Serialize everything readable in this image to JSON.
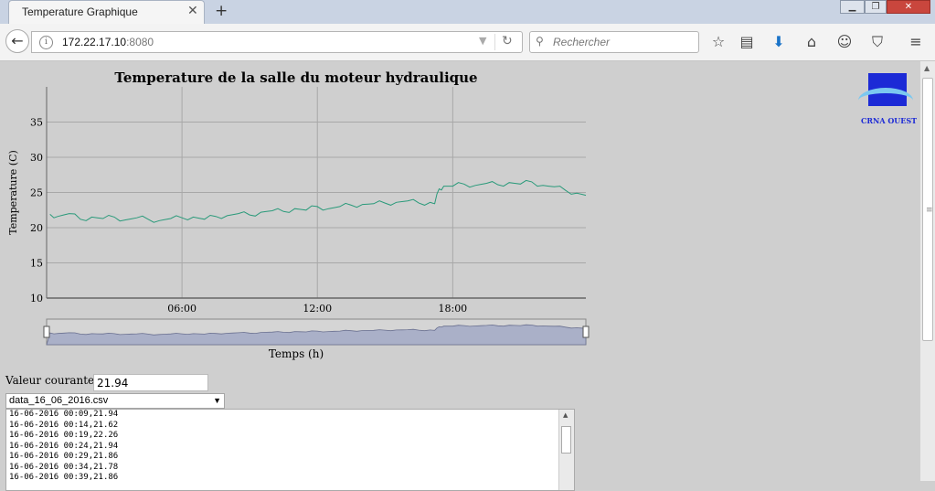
{
  "browser": {
    "tab_title": "Temperature Graphique",
    "tab_close": "✕",
    "new_tab": "+",
    "url_host": "172.22.17.10",
    "url_port": ":8080",
    "search_placeholder": "Rechercher"
  },
  "logo": {
    "text": "CRNA OUEST"
  },
  "chart_data": {
    "type": "line",
    "title": "Temperature de la salle du moteur hydraulique",
    "xlabel": "Temps (h)",
    "ylabel": "Temperature (C)",
    "ylim": [
      10,
      40
    ],
    "xlim_hours": [
      0.0,
      23.9
    ],
    "yticks": [
      10,
      15,
      20,
      25,
      30,
      35
    ],
    "xticks": [
      "06:00",
      "12:00",
      "18:00"
    ],
    "xtick_hours": [
      6,
      12,
      18
    ],
    "grid": true,
    "line_color": "#2a9a7a",
    "series": [
      {
        "x_hours": [
          0.15,
          0.5,
          1.0,
          1.5,
          2.0,
          2.5,
          3.0,
          3.5,
          4.0,
          4.5,
          5.0,
          5.5,
          6.0,
          6.5,
          7.0,
          7.5,
          8.0,
          8.5,
          9.0,
          9.5,
          10.0,
          10.5,
          11.0,
          11.5,
          12.0,
          12.5,
          13.0,
          13.5,
          14.0,
          14.5,
          15.0,
          15.5,
          16.0,
          16.5,
          17.0,
          17.2,
          17.4,
          17.6,
          18.0,
          18.5,
          19.0,
          19.5,
          20.0,
          20.5,
          21.0,
          21.5,
          22.0,
          22.5,
          23.0,
          23.5,
          23.9
        ],
        "values": [
          21.9,
          21.6,
          22.0,
          21.2,
          21.5,
          21.3,
          21.5,
          21.1,
          21.4,
          21.2,
          21.0,
          21.3,
          21.4,
          21.5,
          21.2,
          21.6,
          21.7,
          22.0,
          21.8,
          22.2,
          22.4,
          22.3,
          22.7,
          22.5,
          23.0,
          22.7,
          23.0,
          23.2,
          23.3,
          23.4,
          23.5,
          23.6,
          23.8,
          23.5,
          23.6,
          23.4,
          25.5,
          25.9,
          25.9,
          26.2,
          26.0,
          26.3,
          26.1,
          26.4,
          26.2,
          26.5,
          26.0,
          25.8,
          25.3,
          24.9,
          24.6
        ]
      }
    ]
  },
  "current": {
    "label": "Valeur courante =",
    "value": "21.94"
  },
  "file_select": {
    "selected": "data_16_06_2016.csv"
  },
  "data_lines": [
    "16-06-2016 00:09,21.94",
    "16-06-2016 00:14,21.62",
    "16-06-2016 00:19,22.26",
    "16-06-2016 00:24,21.94",
    "16-06-2016 00:29,21.86",
    "16-06-2016 00:34,21.78",
    "16-06-2016 00:39,21.86"
  ]
}
